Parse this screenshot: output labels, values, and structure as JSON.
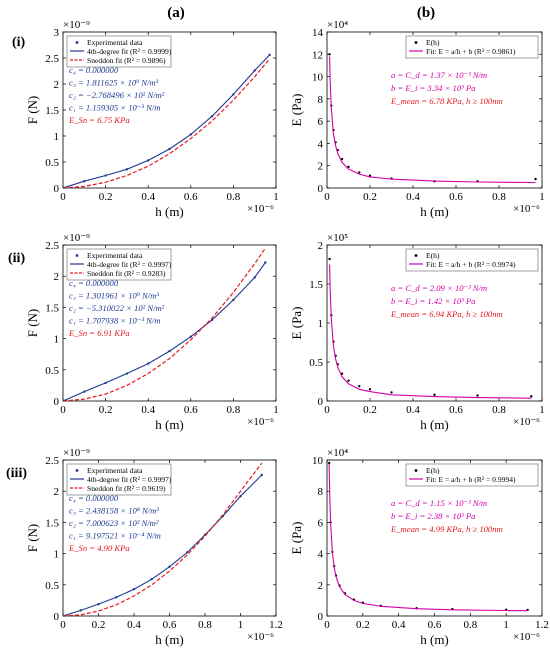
{
  "figure": {
    "column_labels": [
      "(a)",
      "(b)"
    ],
    "row_labels": [
      "(i)",
      "(ii)",
      "(iii)"
    ]
  },
  "chart_data": [
    {
      "type": "scatter",
      "panel": "(i)-(a)",
      "xlabel": "h (m)",
      "ylabel": "F (N)",
      "x_multiplier": "×10⁻⁶",
      "y_multiplier": "×10⁻⁹",
      "xlim": [
        0,
        1.0
      ],
      "ylim": [
        0,
        3.0
      ],
      "xticks": [
        0,
        0.2,
        0.4,
        0.6,
        0.8,
        1.0
      ],
      "xtick_labels": [
        "0",
        "0.2",
        "0.4",
        "0.6",
        "0.8",
        "1"
      ],
      "yticks": [
        0,
        0.5,
        1.0,
        1.5,
        2.0,
        2.5,
        3.0
      ],
      "ytick_labels": [
        "0",
        "0.5",
        "1",
        "1.5",
        "2",
        "2.5",
        "3"
      ],
      "legend_position": "top-left",
      "series": [
        {
          "name": "Experimental data",
          "style": "points",
          "color": "#1f3a93",
          "x": [
            0.0,
            0.1,
            0.2,
            0.3,
            0.4,
            0.5,
            0.6,
            0.7,
            0.8,
            0.9,
            0.97
          ],
          "y": [
            0.0,
            0.13,
            0.24,
            0.36,
            0.53,
            0.75,
            1.03,
            1.38,
            1.8,
            2.26,
            2.56
          ]
        },
        {
          "name": "4th-degree fit (R² = 0.9999)",
          "style": "solid",
          "color": "#1f3a93",
          "x": [
            0.0,
            0.1,
            0.2,
            0.3,
            0.4,
            0.5,
            0.6,
            0.7,
            0.8,
            0.9,
            0.97
          ],
          "y": [
            0.0,
            0.13,
            0.24,
            0.36,
            0.53,
            0.75,
            1.03,
            1.38,
            1.8,
            2.26,
            2.56
          ]
        },
        {
          "name": "Sneddon fit (R² = 0.9896)",
          "style": "dashed",
          "color": "#e41a1c",
          "x": [
            0.0,
            0.1,
            0.2,
            0.3,
            0.4,
            0.5,
            0.6,
            0.7,
            0.8,
            0.9,
            0.97
          ],
          "y": [
            0.0,
            0.03,
            0.11,
            0.24,
            0.42,
            0.66,
            0.95,
            1.29,
            1.69,
            2.14,
            2.48
          ]
        }
      ],
      "annotations": [
        {
          "text": "c₄  =  0.000000",
          "color": "#1f3a93"
        },
        {
          "text": "c₃  =  1.811625 × 10⁹ N/m³",
          "color": "#1f3a93"
        },
        {
          "text": "c₂  =  −2.768496 × 10² N/m²",
          "color": "#1f3a93"
        },
        {
          "text": "c₁  =  1.159305 × 10⁻³ N/m",
          "color": "#1f3a93"
        },
        {
          "text": "E_Sn = 6.75 KPa",
          "color": "#e41a1c"
        }
      ]
    },
    {
      "type": "scatter",
      "panel": "(i)-(b)",
      "xlabel": "h (m)",
      "ylabel": "E (Pa)",
      "x_multiplier": "×10⁻⁶",
      "y_multiplier": "×10⁴",
      "xlim": [
        0,
        1.0
      ],
      "ylim": [
        0,
        14
      ],
      "xticks": [
        0,
        0.2,
        0.4,
        0.6,
        0.8,
        1.0
      ],
      "xtick_labels": [
        "0",
        "0.2",
        "0.4",
        "0.6",
        "0.8",
        "1"
      ],
      "yticks": [
        0,
        2,
        4,
        6,
        8,
        10,
        12,
        14
      ],
      "ytick_labels": [
        "0",
        "2",
        "4",
        "6",
        "8",
        "10",
        "12",
        "14"
      ],
      "legend_position": "top-right",
      "series": [
        {
          "name": "E(h)",
          "style": "points",
          "color": "#000000",
          "x": [
            0.012,
            0.02,
            0.03,
            0.04,
            0.05,
            0.07,
            0.1,
            0.15,
            0.2,
            0.3,
            0.5,
            0.7,
            0.97
          ],
          "y": [
            12.0,
            7.4,
            5.2,
            4.1,
            3.4,
            2.6,
            1.9,
            1.4,
            1.1,
            0.85,
            0.6,
            0.6,
            0.8
          ]
        },
        {
          "name": "Fit: E = a/h + b (R² = 0.9861)",
          "style": "solid",
          "color": "#d400aa",
          "x": [
            0.012,
            0.015,
            0.02,
            0.03,
            0.04,
            0.05,
            0.07,
            0.1,
            0.15,
            0.2,
            0.3,
            0.5,
            0.7,
            0.97
          ],
          "y": [
            11.8,
            9.5,
            7.2,
            4.9,
            3.8,
            3.1,
            2.3,
            1.7,
            1.25,
            1.0,
            0.8,
            0.62,
            0.54,
            0.49
          ]
        }
      ],
      "annotations": [
        {
          "text": "a = C_d = 1.37 × 10⁻³ N/m",
          "color": "#d400aa"
        },
        {
          "text": "b = E_i = 3.34 × 10³ Pa",
          "color": "#d400aa"
        },
        {
          "text": "E_mean = 6.78 KPa,  h ≥ 100nm",
          "color": "#e41a1c"
        }
      ]
    },
    {
      "type": "scatter",
      "panel": "(ii)-(a)",
      "xlabel": "h (m)",
      "ylabel": "F (N)",
      "x_multiplier": "×10⁻⁶",
      "y_multiplier": "×10⁻⁹",
      "xlim": [
        0,
        1.0
      ],
      "ylim": [
        0,
        2.5
      ],
      "xticks": [
        0,
        0.2,
        0.4,
        0.6,
        0.8,
        1.0
      ],
      "xtick_labels": [
        "0",
        "0.2",
        "0.4",
        "0.6",
        "0.8",
        "1"
      ],
      "yticks": [
        0,
        0.5,
        1.0,
        1.5,
        2.0,
        2.5
      ],
      "ytick_labels": [
        "0",
        "0.5",
        "1",
        "1.5",
        "2",
        "2.5"
      ],
      "legend_position": "top-left",
      "series": [
        {
          "name": "Experimental data",
          "style": "points",
          "color": "#1f3a93",
          "x": [
            0.0,
            0.1,
            0.2,
            0.3,
            0.4,
            0.5,
            0.6,
            0.7,
            0.8,
            0.9,
            0.95
          ],
          "y": [
            0.0,
            0.15,
            0.29,
            0.44,
            0.6,
            0.8,
            1.03,
            1.3,
            1.62,
            1.98,
            2.22
          ]
        },
        {
          "name": "4th-degree fit (R² = 0.9997)",
          "style": "solid",
          "color": "#1f3a93",
          "x": [
            0.0,
            0.1,
            0.2,
            0.3,
            0.4,
            0.5,
            0.6,
            0.7,
            0.8,
            0.9,
            0.95
          ],
          "y": [
            0.0,
            0.15,
            0.29,
            0.44,
            0.6,
            0.8,
            1.03,
            1.3,
            1.62,
            1.98,
            2.22
          ]
        },
        {
          "name": "Sneddon fit (R² = 0.9283)",
          "style": "dashed",
          "color": "#e41a1c",
          "x": [
            0.0,
            0.1,
            0.2,
            0.3,
            0.4,
            0.5,
            0.6,
            0.7,
            0.8,
            0.9,
            0.95
          ],
          "y": [
            0.0,
            0.03,
            0.11,
            0.25,
            0.44,
            0.68,
            0.98,
            1.33,
            1.74,
            2.2,
            2.45
          ]
        }
      ],
      "annotations": [
        {
          "text": "c₄  =  0.000000",
          "color": "#1f3a93"
        },
        {
          "text": "c₃  =  1.301961 × 10⁹ N/m³",
          "color": "#1f3a93"
        },
        {
          "text": "c₂  =  −5.310022 × 10² N/m²",
          "color": "#1f3a93"
        },
        {
          "text": "c₁  =  1.707938 × 10⁻³ N/m",
          "color": "#1f3a93"
        },
        {
          "text": "E_Sn = 6.91 KPa",
          "color": "#e41a1c"
        }
      ]
    },
    {
      "type": "scatter",
      "panel": "(ii)-(b)",
      "xlabel": "h (m)",
      "ylabel": "E (Pa)",
      "x_multiplier": "×10⁻⁶",
      "y_multiplier": "×10⁵",
      "xlim": [
        0,
        1.0
      ],
      "ylim": [
        0,
        2.0
      ],
      "xticks": [
        0,
        0.2,
        0.4,
        0.6,
        0.8,
        1.0
      ],
      "xtick_labels": [
        "0",
        "0.2",
        "0.4",
        "0.6",
        "0.8",
        "1"
      ],
      "yticks": [
        0,
        0.5,
        1.0,
        1.5,
        2.0
      ],
      "ytick_labels": [
        "0",
        "0.5",
        "1",
        "1.5",
        "2"
      ],
      "legend_position": "top-right",
      "series": [
        {
          "name": "E(h)",
          "style": "points",
          "color": "#000000",
          "x": [
            0.012,
            0.02,
            0.03,
            0.04,
            0.05,
            0.07,
            0.1,
            0.15,
            0.2,
            0.3,
            0.5,
            0.7,
            0.95
          ],
          "y": [
            1.82,
            1.1,
            0.76,
            0.58,
            0.47,
            0.35,
            0.26,
            0.19,
            0.15,
            0.11,
            0.08,
            0.07,
            0.06
          ]
        },
        {
          "name": "Fit: E = a/h + b (R² = 0.9974)",
          "style": "solid",
          "color": "#d400aa",
          "x": [
            0.012,
            0.015,
            0.02,
            0.03,
            0.04,
            0.05,
            0.07,
            0.1,
            0.15,
            0.2,
            0.3,
            0.5,
            0.7,
            0.95
          ],
          "y": [
            1.75,
            1.41,
            1.06,
            0.71,
            0.54,
            0.43,
            0.31,
            0.22,
            0.15,
            0.12,
            0.08,
            0.056,
            0.044,
            0.036
          ]
        }
      ],
      "annotations": [
        {
          "text": "a = C_d = 2.09 × 10⁻³ N/m",
          "color": "#d400aa"
        },
        {
          "text": "b = E_i = 1.42 × 10³ Pa",
          "color": "#d400aa"
        },
        {
          "text": "E_mean = 6.94 KPa,  h ≥ 100nm",
          "color": "#e41a1c"
        }
      ]
    },
    {
      "type": "scatter",
      "panel": "(iii)-(a)",
      "xlabel": "h (m)",
      "ylabel": "F (N)",
      "x_multiplier": "×10⁻⁶",
      "y_multiplier": "×10⁻⁹",
      "xlim": [
        0,
        1.2
      ],
      "ylim": [
        0,
        2.5
      ],
      "xticks": [
        0,
        0.2,
        0.4,
        0.6,
        0.8,
        1.0,
        1.2
      ],
      "xtick_labels": [
        "0",
        "0.2",
        "0.4",
        "0.6",
        "0.8",
        "1",
        "1.2"
      ],
      "yticks": [
        0,
        0.5,
        1.0,
        1.5,
        2.0,
        2.5
      ],
      "ytick_labels": [
        "0",
        "0.5",
        "1",
        "1.5",
        "2",
        "2.5"
      ],
      "legend_position": "top-left",
      "series": [
        {
          "name": "Experimental data",
          "style": "points",
          "color": "#1f3a93",
          "x": [
            0.0,
            0.1,
            0.2,
            0.3,
            0.4,
            0.5,
            0.6,
            0.7,
            0.8,
            0.9,
            1.0,
            1.12
          ],
          "y": [
            0.0,
            0.09,
            0.19,
            0.3,
            0.43,
            0.59,
            0.79,
            1.02,
            1.3,
            1.6,
            1.92,
            2.26
          ]
        },
        {
          "name": "4th-degree fit (R² = 0.9997)",
          "style": "solid",
          "color": "#1f3a93",
          "x": [
            0.0,
            0.1,
            0.2,
            0.3,
            0.4,
            0.5,
            0.6,
            0.7,
            0.8,
            0.9,
            1.0,
            1.12
          ],
          "y": [
            0.0,
            0.09,
            0.19,
            0.3,
            0.43,
            0.59,
            0.79,
            1.02,
            1.3,
            1.6,
            1.92,
            2.26
          ]
        },
        {
          "name": "Sneddon fit (R² = 0.9619)",
          "style": "dashed",
          "color": "#e41a1c",
          "x": [
            0.0,
            0.1,
            0.2,
            0.3,
            0.4,
            0.5,
            0.6,
            0.7,
            0.8,
            0.9,
            1.0,
            1.12
          ],
          "y": [
            0.0,
            0.02,
            0.08,
            0.18,
            0.32,
            0.5,
            0.72,
            0.98,
            1.28,
            1.62,
            2.0,
            2.45
          ]
        }
      ],
      "annotations": [
        {
          "text": "c₄  =  0.000000",
          "color": "#1f3a93"
        },
        {
          "text": "c₃  =  2.438158 × 10⁸ N/m³",
          "color": "#1f3a93"
        },
        {
          "text": "c₂  =  7.000623 × 10² N/m²",
          "color": "#1f3a93"
        },
        {
          "text": "c₁  =  9.197521 × 10⁻⁴ N/m",
          "color": "#1f3a93"
        },
        {
          "text": "E_Sn = 4.90 KPa",
          "color": "#e41a1c"
        }
      ]
    },
    {
      "type": "scatter",
      "panel": "(iii)-(b)",
      "xlabel": "h (m)",
      "ylabel": "E (Pa)",
      "x_multiplier": "×10⁻⁶",
      "y_multiplier": "×10⁴",
      "xlim": [
        0,
        1.2
      ],
      "ylim": [
        0,
        10
      ],
      "xticks": [
        0,
        0.2,
        0.4,
        0.6,
        0.8,
        1.0,
        1.2
      ],
      "xtick_labels": [
        "0",
        "0.2",
        "0.4",
        "0.6",
        "0.8",
        "1",
        "1.2"
      ],
      "yticks": [
        0,
        2,
        4,
        6,
        8,
        10
      ],
      "ytick_labels": [
        "0",
        "2",
        "4",
        "6",
        "8",
        "10"
      ],
      "legend_position": "top-right",
      "series": [
        {
          "name": "E(h)",
          "style": "points",
          "color": "#000000",
          "x": [
            0.012,
            0.02,
            0.03,
            0.04,
            0.05,
            0.07,
            0.1,
            0.15,
            0.2,
            0.3,
            0.5,
            0.7,
            1.0,
            1.12
          ],
          "y": [
            9.8,
            6.0,
            4.1,
            3.2,
            2.6,
            1.95,
            1.45,
            1.05,
            0.85,
            0.65,
            0.5,
            0.44,
            0.4,
            0.39
          ]
        },
        {
          "name": "Fit: E = a/h + b (R² = 0.9994)",
          "style": "solid",
          "color": "#d400aa",
          "x": [
            0.012,
            0.015,
            0.02,
            0.03,
            0.04,
            0.05,
            0.07,
            0.1,
            0.15,
            0.2,
            0.3,
            0.5,
            0.7,
            1.0,
            1.12
          ],
          "y": [
            9.8,
            7.9,
            5.99,
            4.07,
            3.11,
            2.54,
            1.88,
            1.39,
            1.0,
            0.81,
            0.62,
            0.47,
            0.4,
            0.35,
            0.34
          ]
        }
      ],
      "annotations": [
        {
          "text": "a = C_d = 1.15 × 10⁻³ N/m",
          "color": "#d400aa"
        },
        {
          "text": "b = E_i = 2.38 × 10³ Pa",
          "color": "#d400aa"
        },
        {
          "text": "E_mean = 4.99 KPa,  h ≥ 100nm",
          "color": "#e41a1c"
        }
      ]
    }
  ]
}
